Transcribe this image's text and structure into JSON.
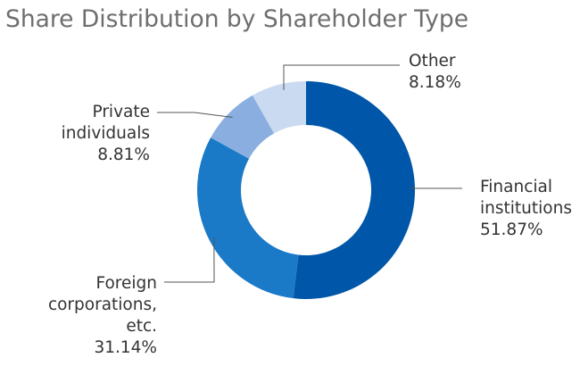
{
  "chart_data": {
    "type": "pie",
    "variant": "donut",
    "title": "Share Distribution by Shareholder Type",
    "slices": [
      {
        "lines": [
          "Financial",
          "institutions"
        ],
        "value": 51.87,
        "value_label": "51.87%",
        "color": "#0056a8"
      },
      {
        "lines": [
          "Foreign",
          "corporations,",
          "etc."
        ],
        "value": 31.14,
        "value_label": "31.14%",
        "color": "#1a7ac7"
      },
      {
        "lines": [
          "Private",
          "individuals"
        ],
        "value": 8.81,
        "value_label": "8.81%",
        "color": "#8aaedf"
      },
      {
        "lines": [
          "Other"
        ],
        "value": 8.18,
        "value_label": "8.18%",
        "color": "#c9daf1"
      }
    ],
    "start": "12 o'clock",
    "direction": "clockwise",
    "leader_line_color": "#555555"
  }
}
